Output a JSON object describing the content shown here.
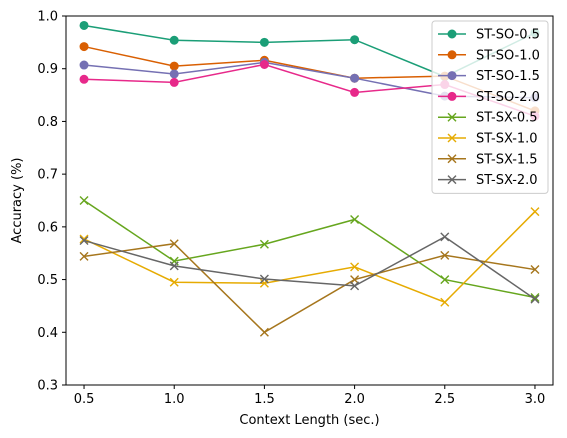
{
  "chart_data": {
    "type": "line",
    "title": "",
    "xlabel": "Context Length (sec.)",
    "ylabel": "Accuracy (%)",
    "x": [
      0.5,
      1.0,
      1.5,
      2.0,
      2.5,
      3.0
    ],
    "x_tick_labels": [
      "0.5",
      "1.0",
      "1.5",
      "2.0",
      "2.5",
      "3.0"
    ],
    "y_tick_labels": [
      "0.3",
      "0.4",
      "0.5",
      "0.6",
      "0.7",
      "0.8",
      "0.9",
      "1.0"
    ],
    "xlim": [
      0.4,
      3.1
    ],
    "ylim": [
      0.3,
      1.0
    ],
    "grid": false,
    "legend_placement": "top-right",
    "series": [
      {
        "name": "ST-SO-0.5",
        "color": "#1b9e77",
        "marker": "circle",
        "values": [
          0.982,
          0.954,
          0.95,
          0.955,
          0.885,
          0.968
        ]
      },
      {
        "name": "ST-SO-1.0",
        "color": "#d95f02",
        "marker": "circle",
        "values": [
          0.942,
          0.905,
          0.916,
          0.882,
          0.886,
          0.82
        ]
      },
      {
        "name": "ST-SO-1.5",
        "color": "#7570b3",
        "marker": "circle",
        "values": [
          0.907,
          0.89,
          0.912,
          0.882,
          0.848,
          0.845
        ]
      },
      {
        "name": "ST-SO-2.0",
        "color": "#e7298a",
        "marker": "circle",
        "values": [
          0.88,
          0.874,
          0.908,
          0.855,
          0.87,
          0.81
        ]
      },
      {
        "name": "ST-SX-0.5",
        "color": "#66a61e",
        "marker": "x",
        "values": [
          0.65,
          0.535,
          0.567,
          0.614,
          0.5,
          0.466
        ]
      },
      {
        "name": "ST-SX-1.0",
        "color": "#e6ab02",
        "marker": "x",
        "values": [
          0.577,
          0.495,
          0.493,
          0.524,
          0.457,
          0.629
        ]
      },
      {
        "name": "ST-SX-1.5",
        "color": "#a6761d",
        "marker": "x",
        "values": [
          0.544,
          0.568,
          0.4,
          0.5,
          0.546,
          0.519
        ]
      },
      {
        "name": "ST-SX-2.0",
        "color": "#666666",
        "marker": "x",
        "values": [
          0.574,
          0.526,
          0.501,
          0.488,
          0.581,
          0.463
        ]
      }
    ]
  }
}
